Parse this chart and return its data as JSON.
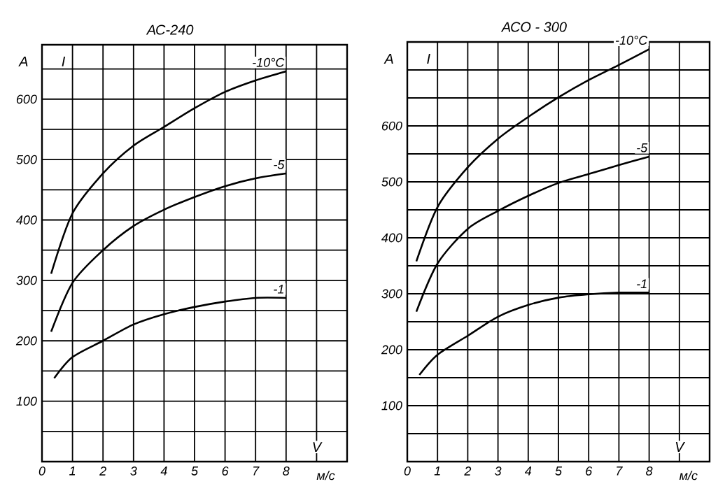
{
  "chart_data": [
    {
      "type": "line",
      "title": "АС-240",
      "ylabel": "А",
      "xlabel": "м/с",
      "annotations": [
        "I",
        "V"
      ],
      "grid": true,
      "xlim": [
        0,
        10
      ],
      "ylim": [
        0,
        690
      ],
      "xticks": [
        0,
        1,
        2,
        3,
        4,
        5,
        6,
        7,
        8,
        {
          "value": 9,
          "label": null
        }
      ],
      "yticks": [
        {
          "value": 50,
          "label": null
        },
        100,
        {
          "value": 150,
          "label": null
        },
        200,
        {
          "value": 250,
          "label": null
        },
        300,
        {
          "value": 350,
          "label": null
        },
        400,
        {
          "value": 450,
          "label": null
        },
        500,
        {
          "value": 550,
          "label": null
        },
        600,
        {
          "value": 650,
          "label": null
        }
      ],
      "series": [
        {
          "name": "-10°C",
          "color": "#000000",
          "x": [
            0.3,
            1,
            2,
            3,
            4,
            5,
            6,
            7,
            8
          ],
          "values": [
            311,
            411,
            477,
            523,
            554,
            585,
            612,
            631,
            646
          ]
        },
        {
          "name": "-5",
          "color": "#000000",
          "x": [
            0.3,
            1,
            2,
            3,
            4,
            5,
            6,
            7,
            8
          ],
          "values": [
            215,
            296,
            350,
            390,
            417,
            438,
            456,
            469,
            477
          ]
        },
        {
          "name": "-1",
          "color": "#000000",
          "x": [
            0.4,
            1,
            2,
            3,
            4,
            5,
            6,
            7,
            8
          ],
          "values": [
            138,
            173,
            200,
            227,
            244,
            256,
            265,
            271,
            271
          ]
        }
      ]
    },
    {
      "type": "line",
      "title": "АСО - 300",
      "ylabel": "А",
      "xlabel": "м/с",
      "annotations": [
        "I",
        "V"
      ],
      "grid": true,
      "xlim": [
        0,
        10
      ],
      "ylim": [
        0,
        750
      ],
      "xticks": [
        0,
        1,
        2,
        3,
        4,
        5,
        6,
        7,
        8,
        {
          "value": 9,
          "label": null
        }
      ],
      "yticks": [
        {
          "value": 50,
          "label": null
        },
        100,
        {
          "value": 150,
          "label": null
        },
        200,
        {
          "value": 250,
          "label": null
        },
        300,
        {
          "value": 350,
          "label": null
        },
        400,
        {
          "value": 450,
          "label": null
        },
        500,
        {
          "value": 550,
          "label": null
        },
        600,
        {
          "value": 650,
          "label": null
        },
        {
          "value": 700,
          "label": null
        }
      ],
      "series": [
        {
          "name": "-10°C",
          "color": "#000000",
          "x": [
            0.3,
            1,
            2,
            3,
            4,
            5,
            6,
            7,
            8
          ],
          "values": [
            358,
            455,
            526,
            577,
            616,
            651,
            682,
            709,
            737
          ]
        },
        {
          "name": "-5",
          "color": "#000000",
          "x": [
            0.3,
            1,
            2,
            3,
            4,
            5,
            6,
            7,
            8
          ],
          "values": [
            268,
            354,
            416,
            448,
            475,
            498,
            514,
            530,
            545
          ]
        },
        {
          "name": "-1",
          "color": "#000000",
          "x": [
            0.4,
            1,
            2,
            3,
            4,
            5,
            6,
            7,
            8
          ],
          "values": [
            155,
            191,
            225,
            259,
            280,
            293,
            299,
            302,
            302
          ]
        }
      ]
    }
  ]
}
